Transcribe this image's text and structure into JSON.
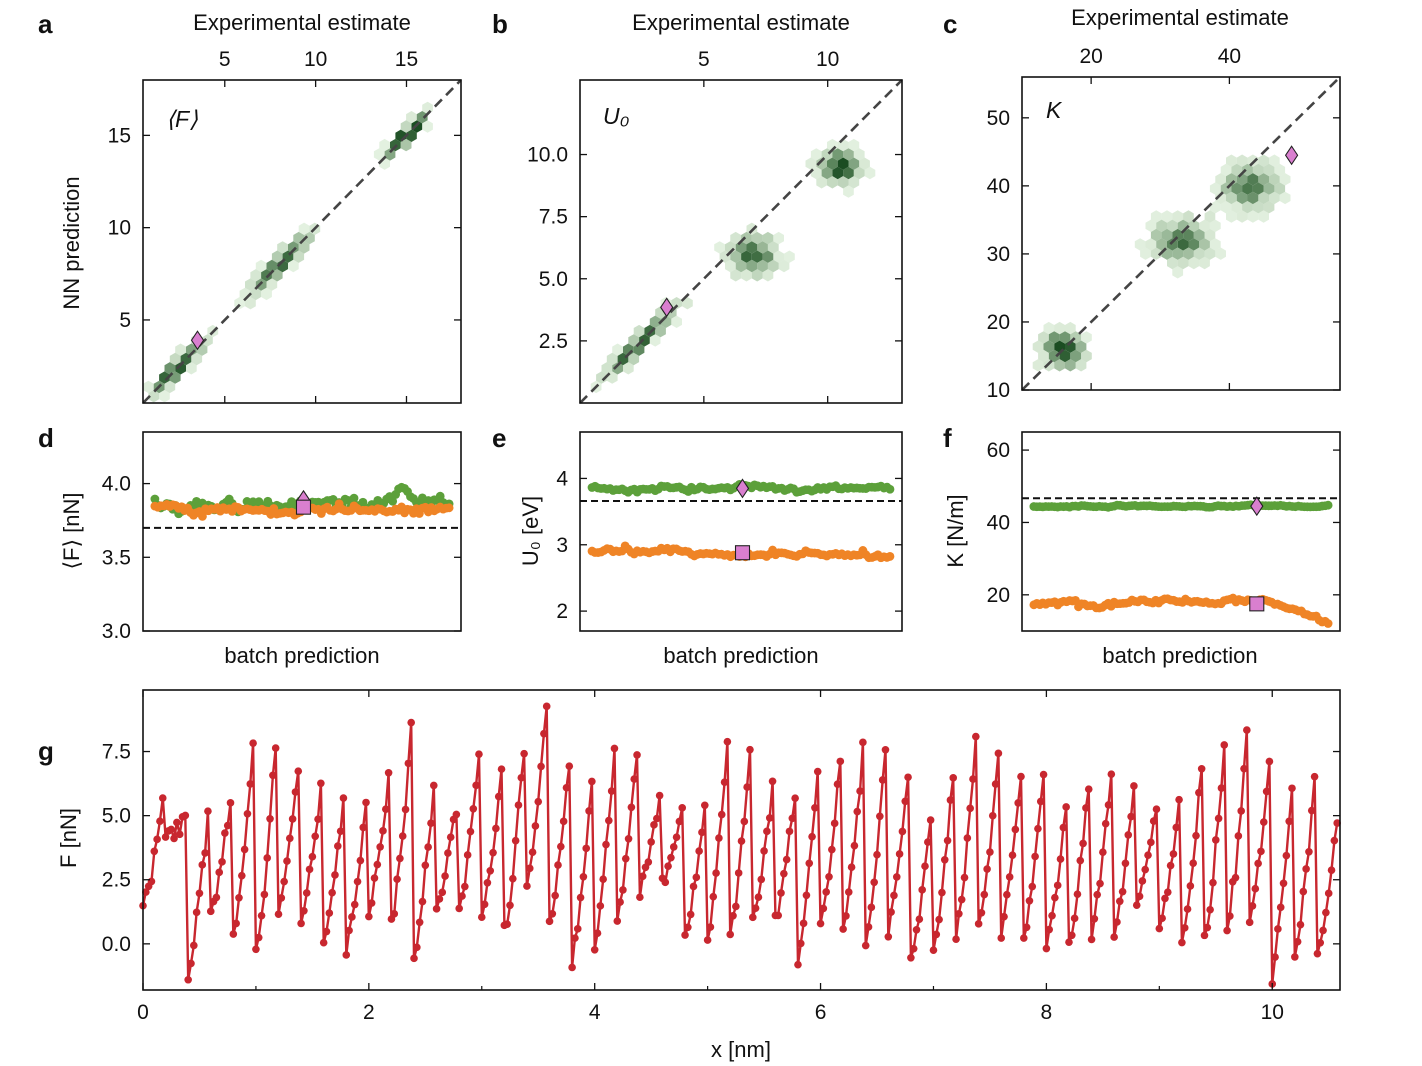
{
  "panel_letters": {
    "a": "a",
    "b": "b",
    "c": "c",
    "d": "d",
    "e": "e",
    "f": "f",
    "g": "g"
  },
  "colors": {
    "green": "#5ca03a",
    "orange": "#ef8426",
    "red": "#c8272f",
    "marker": "#d97fcf",
    "dashed": "#444444",
    "hex_dark": "#1b4d22",
    "hex_light": "#c7e6bd"
  },
  "chart_data": [
    {
      "id": "a",
      "type": "scatter",
      "style": "hexbin",
      "title": "⟨F⟩",
      "xlabel": "Experimental estimate",
      "ylabel": "NN prediction",
      "xlim": [
        0.5,
        18.0
      ],
      "ylim": [
        0.5,
        18.0
      ],
      "xticks": [
        5,
        10,
        15
      ],
      "yticks": [
        5,
        10,
        15
      ],
      "clusters": [
        {
          "x": 2.5,
          "y": 2.5,
          "spread": 1.6,
          "along": true
        },
        {
          "x": 8.0,
          "y": 8.0,
          "spread": 1.8,
          "along": true
        },
        {
          "x": 15.0,
          "y": 15.0,
          "spread": 1.2,
          "along": true
        }
      ],
      "marker": {
        "x": 3.5,
        "y": 3.9
      }
    },
    {
      "id": "b",
      "type": "scatter",
      "style": "hexbin",
      "title": "U₀",
      "xlabel": "Experimental estimate",
      "ylabel": "",
      "xlim": [
        0.0,
        13.0
      ],
      "ylim": [
        0.0,
        13.0
      ],
      "xticks": [
        5,
        10
      ],
      "yticks": [
        2.5,
        5.0,
        7.5,
        10.0
      ],
      "ytick_labels": [
        "2.5",
        "5.0",
        "7.5",
        "10.0"
      ],
      "clusters": [
        {
          "x": 2.5,
          "y": 2.5,
          "spread": 1.5,
          "along": true
        },
        {
          "x": 7.0,
          "y": 6.0,
          "spread": 1.0,
          "along": false
        },
        {
          "x": 10.5,
          "y": 9.5,
          "spread": 0.8,
          "along": false
        }
      ],
      "marker": {
        "x": 3.5,
        "y": 3.85
      }
    },
    {
      "id": "c",
      "type": "scatter",
      "style": "hexbin",
      "title": "K",
      "xlabel": "Experimental estimate",
      "ylabel": "",
      "xlim": [
        10,
        56
      ],
      "ylim": [
        10,
        56
      ],
      "xticks": [
        20,
        40
      ],
      "yticks": [
        10,
        20,
        30,
        40,
        50
      ],
      "clusters": [
        {
          "x": 16,
          "y": 16,
          "spread": 3.0,
          "along": false
        },
        {
          "x": 33,
          "y": 32,
          "spread": 4.0,
          "along": false
        },
        {
          "x": 43,
          "y": 40,
          "spread": 4.0,
          "along": false
        }
      ],
      "marker": {
        "x": 49,
        "y": 44.5
      }
    },
    {
      "id": "d",
      "type": "scatter",
      "xlabel": "batch prediction",
      "ylabel": "⟨F⟩ [nN]",
      "ylim": [
        3.0,
        4.35
      ],
      "yticks": [
        3.0,
        3.5,
        4.0
      ],
      "ytick_labels": [
        "3.0",
        "3.5",
        "4.0"
      ],
      "n_points": 100,
      "reference_line": 3.7,
      "series": [
        {
          "name": "green",
          "mean": 3.86,
          "noise": 0.06
        },
        {
          "name": "orange",
          "mean": 3.83,
          "noise": 0.04
        }
      ],
      "markers": {
        "diamond": {
          "index": 50,
          "value": 3.89
        },
        "square": {
          "index": 50,
          "value": 3.84
        }
      }
    },
    {
      "id": "e",
      "type": "scatter",
      "xlabel": "batch prediction",
      "ylabel": "U₀ [eV]",
      "ylim": [
        1.7,
        4.7
      ],
      "yticks": [
        2,
        3,
        4
      ],
      "n_points": 100,
      "reference_line": 3.66,
      "series": [
        {
          "name": "green",
          "mean": 3.85,
          "noise": 0.05
        },
        {
          "name": "orange",
          "mean": 2.88,
          "noise": 0.07
        }
      ],
      "markers": {
        "diamond": {
          "index": 50,
          "value": 3.85
        },
        "square": {
          "index": 50,
          "value": 2.88
        }
      }
    },
    {
      "id": "f",
      "type": "scatter",
      "xlabel": "batch prediction",
      "ylabel": "K [N/m]",
      "ylim": [
        10,
        65
      ],
      "yticks": [
        20,
        40,
        60
      ],
      "n_points": 100,
      "reference_line": 46.7,
      "series": [
        {
          "name": "green",
          "mean": 44.5,
          "noise": 0.3
        },
        {
          "name": "orange",
          "mean": 18.0,
          "noise": 1.0
        }
      ],
      "markers": {
        "diamond": {
          "index": 75,
          "value": 44.5
        },
        "square": {
          "index": 75,
          "value": 17.5
        }
      }
    },
    {
      "id": "g",
      "type": "line",
      "xlabel": "x [nm]",
      "ylabel": "F [nN]",
      "xlim": [
        0,
        10.6
      ],
      "ylim": [
        -1.8,
        9.9
      ],
      "xticks": [
        0,
        2,
        4,
        6,
        8,
        10
      ],
      "yticks": [
        0.0,
        2.5,
        5.0,
        7.5
      ],
      "ytick_labels": [
        "0.0",
        "2.5",
        "5.0",
        "7.5"
      ],
      "period": 0.2,
      "points_per_period": 8,
      "peaks": [
        5.6,
        4.9,
        5.0,
        5.6,
        7.6,
        7.8,
        6.8,
        6.2,
        5.8,
        5.4,
        6.6,
        8.2,
        6.0,
        5.4,
        7.2,
        6.8,
        7.6,
        9.4,
        7.0,
        6.4,
        7.4,
        7.6,
        6.0,
        5.2,
        5.3,
        7.7,
        7.6,
        6.2,
        6.0,
        6.6,
        7.0,
        7.6,
        7.8,
        6.4,
        5.0,
        6.4,
        7.8,
        7.4,
        6.6,
        6.8,
        5.4,
        6.2,
        6.6,
        6.2,
        5.4,
        5.6,
        6.8,
        7.6,
        8.1,
        7.2,
        6.2,
        6.5,
        4.9
      ],
      "troughs": [
        1.6,
        4.2,
        -1.3,
        1.2,
        0.3,
        -0.5,
        1.2,
        0.8,
        0.1,
        -0.2,
        1.2,
        0.8,
        -0.4,
        1.4,
        1.4,
        1.0,
        0.6,
        2.2,
        0.8,
        -0.6,
        -0.2,
        1.1,
        1.9,
        2.2,
        0.6,
        0.3,
        0.2,
        1.0,
        1.0,
        -0.5,
        0.8,
        0.6,
        0.0,
        0.6,
        -0.6,
        -0.2,
        0.3,
        0.6,
        0.4,
        0.2,
        0.1,
        0.0,
        0.5,
        0.3,
        1.4,
        0.6,
        -0.2,
        0.2,
        0.6,
        0.8,
        -1.1,
        -0.5
      ]
    }
  ]
}
